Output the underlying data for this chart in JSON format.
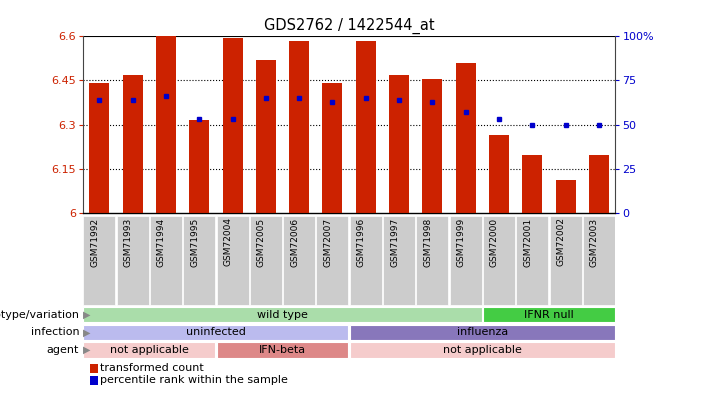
{
  "title": "GDS2762 / 1422544_at",
  "samples": [
    "GSM71992",
    "GSM71993",
    "GSM71994",
    "GSM71995",
    "GSM72004",
    "GSM72005",
    "GSM72006",
    "GSM72007",
    "GSM71996",
    "GSM71997",
    "GSM71998",
    "GSM71999",
    "GSM72000",
    "GSM72001",
    "GSM72002",
    "GSM72003"
  ],
  "bar_values": [
    6.44,
    6.47,
    6.6,
    6.315,
    6.595,
    6.52,
    6.585,
    6.44,
    6.585,
    6.47,
    6.455,
    6.51,
    6.265,
    6.195,
    6.11,
    6.195
  ],
  "percentile_values": [
    64,
    64,
    66,
    53,
    53,
    65,
    65,
    63,
    65,
    64,
    63,
    57,
    53,
    50,
    50,
    50
  ],
  "ymin": 6.0,
  "ymax": 6.6,
  "yticks": [
    6.0,
    6.15,
    6.3,
    6.45,
    6.6
  ],
  "ytick_labels": [
    "6",
    "6.15",
    "6.3",
    "6.45",
    "6.6"
  ],
  "right_yticks": [
    0,
    25,
    50,
    75,
    100
  ],
  "right_ylabels": [
    "0",
    "25",
    "50",
    "75",
    "100%"
  ],
  "bar_color": "#cc2200",
  "percentile_color": "#0000cc",
  "genotype_segments": [
    {
      "start": 0,
      "end": 12,
      "label": "wild type",
      "color": "#aaddaa"
    },
    {
      "start": 12,
      "end": 16,
      "label": "IFNR null",
      "color": "#44cc44"
    }
  ],
  "infection_segments": [
    {
      "start": 0,
      "end": 8,
      "label": "uninfected",
      "color": "#bbbbee"
    },
    {
      "start": 8,
      "end": 16,
      "label": "influenza",
      "color": "#8877bb"
    }
  ],
  "agent_segments": [
    {
      "start": 0,
      "end": 4,
      "label": "not applicable",
      "color": "#f5cccc"
    },
    {
      "start": 4,
      "end": 8,
      "label": "IFN-beta",
      "color": "#dd8888"
    },
    {
      "start": 8,
      "end": 16,
      "label": "not applicable",
      "color": "#f5cccc"
    }
  ],
  "row_labels": [
    "genotype/variation",
    "infection",
    "agent"
  ],
  "legend_red": "transformed count",
  "legend_blue": "percentile rank within the sample"
}
